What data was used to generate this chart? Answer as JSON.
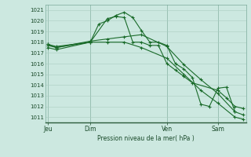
{
  "background_color": "#cce8e0",
  "grid_color": "#aaccc0",
  "line_color": "#1a6b2a",
  "xlabel": "Pression niveau de la mer( hPa )",
  "ylim": [
    1010.5,
    1021.5
  ],
  "yticks": [
    1011,
    1012,
    1013,
    1014,
    1015,
    1016,
    1017,
    1018,
    1019,
    1020,
    1021
  ],
  "day_labels": [
    "Jeu",
    "Dim",
    "Ven",
    "Sam"
  ],
  "day_positions": [
    0,
    5,
    14,
    20
  ],
  "xlim": [
    -0.3,
    23.3
  ],
  "series1_x": [
    0,
    1,
    5,
    6,
    7,
    8,
    9,
    10,
    11,
    12,
    13,
    14,
    15,
    16,
    17,
    18,
    19,
    20,
    21,
    22
  ],
  "series1_y": [
    1017.8,
    1017.5,
    1018.0,
    1019.7,
    1020.0,
    1020.5,
    1020.8,
    1020.3,
    1019.1,
    1018.0,
    1018.0,
    1017.7,
    1016.0,
    1015.5,
    1014.7,
    1012.2,
    1012.0,
    1013.7,
    1013.8,
    1011.5
  ],
  "series2_x": [
    0,
    1,
    5,
    7,
    8,
    9,
    10,
    11,
    12,
    13,
    14,
    15,
    16,
    17,
    20,
    21,
    22,
    23
  ],
  "series2_y": [
    1017.5,
    1017.3,
    1018.0,
    1020.2,
    1020.4,
    1020.3,
    1018.0,
    1018.0,
    1017.7,
    1017.7,
    1016.0,
    1015.4,
    1014.8,
    1014.2,
    1013.5,
    1012.8,
    1012.0,
    1011.8
  ],
  "series3_x": [
    0,
    1,
    5,
    7,
    9,
    11,
    14,
    16,
    18,
    20,
    22,
    23
  ],
  "series3_y": [
    1017.7,
    1017.5,
    1018.1,
    1018.3,
    1018.5,
    1018.7,
    1017.6,
    1015.9,
    1014.5,
    1013.2,
    1011.5,
    1011.2
  ],
  "series4_x": [
    0,
    1,
    5,
    7,
    9,
    11,
    14,
    16,
    18,
    20,
    22,
    23
  ],
  "series4_y": [
    1017.8,
    1017.6,
    1018.0,
    1018.0,
    1018.0,
    1017.5,
    1016.5,
    1015.0,
    1013.5,
    1012.3,
    1011.0,
    1010.8
  ]
}
